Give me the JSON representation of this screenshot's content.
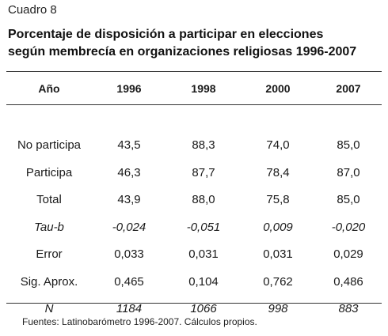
{
  "document": {
    "label": "Cuadro 8",
    "title_line1": "Porcentaje de disposición a participar en elecciones",
    "title_line2": "según membrecía en organizaciones religiosas 1996-2007",
    "source": "Fuentes: Latinobarómetro 1996-2007. Cálculos propios."
  },
  "table": {
    "headers": [
      "Año",
      "1996",
      "1998",
      "2000",
      "2007"
    ],
    "rows": [
      {
        "label": "No participa",
        "values": [
          "43,5",
          "88,3",
          "74,0",
          "85,0"
        ],
        "italic": false
      },
      {
        "label": "Participa",
        "values": [
          "46,3",
          "87,7",
          "78,4",
          "87,0"
        ],
        "italic": false
      },
      {
        "label": "Total",
        "values": [
          "43,9",
          "88,0",
          "75,8",
          "85,0"
        ],
        "italic": false
      },
      {
        "label": "Tau-b",
        "values": [
          "-0,024",
          "-0,051",
          "0,009",
          "-0,020"
        ],
        "italic": true
      },
      {
        "label": "Error",
        "values": [
          "0,033",
          "0,031",
          "0,031",
          "0,029"
        ],
        "italic": false
      },
      {
        "label": "Sig. Aprox.",
        "values": [
          "0,465",
          "0,104",
          "0,762",
          "0,486"
        ],
        "italic": false
      },
      {
        "label": "N",
        "values": [
          "1184",
          "1066",
          "998",
          "883"
        ],
        "italic": true
      }
    ]
  }
}
